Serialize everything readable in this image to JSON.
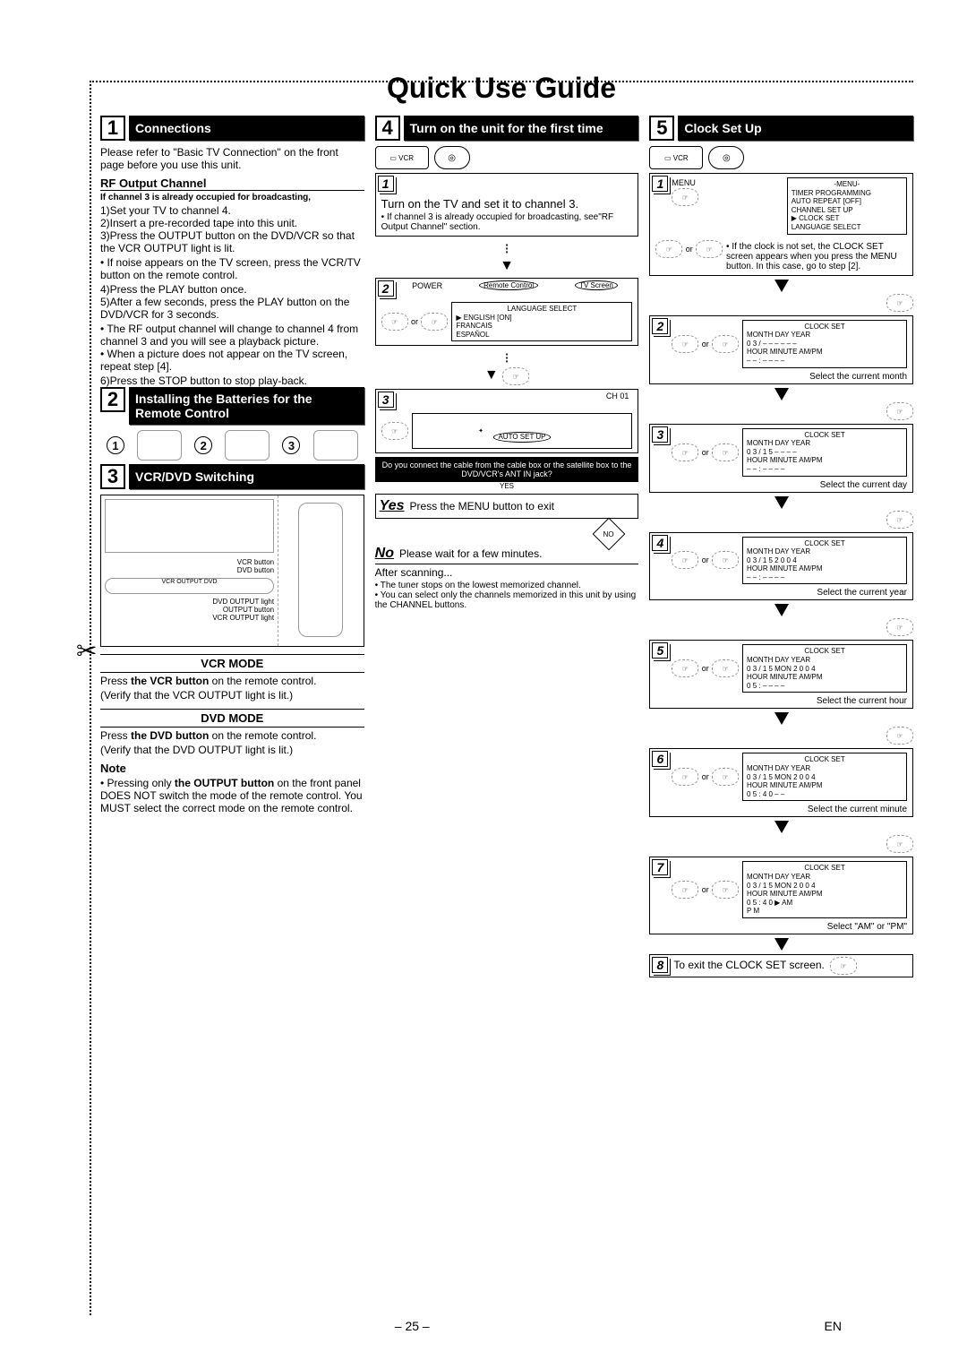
{
  "title": "Quick Use Guide",
  "page_num": "– 25 –",
  "page_lang": "EN",
  "sec1": {
    "num": "1",
    "title": "Connections",
    "intro": "Please refer to \"Basic TV Connection\" on the front page before you use this unit.",
    "sub1": "RF Output Channel",
    "cond": "If channel 3 is already occupied for broadcasting,",
    "s1": "Set your TV to channel 4.",
    "s2": "Insert a pre-recorded tape into this unit.",
    "s3": "Press the OUTPUT button on the DVD/VCR so that the VCR OUTPUT light is lit.",
    "b3": "If noise appears on the TV screen, press the VCR/TV button on the remote control.",
    "s4": "Press the PLAY button once.",
    "s5": "After a few seconds, press the PLAY button on the DVD/VCR for 3 seconds.",
    "b5a": "The RF output channel will change to channel 4 from channel 3 and you will see a playback picture.",
    "b5b": "When a picture does not appear on the TV screen, repeat step [4].",
    "s6": "Press the STOP button to stop play-back."
  },
  "sec2": {
    "num": "2",
    "title": "Installing the Batteries for the Remote Control"
  },
  "sec3": {
    "num": "3",
    "title": "VCR/DVD Switching",
    "l_vcr_btn": "VCR button",
    "l_dvd_btn": "DVD button",
    "l_dvd_out": "DVD OUTPUT light",
    "l_out_btn": "OUTPUT button",
    "l_vcr_out": "VCR OUTPUT light",
    "vcr_mode": "VCR MODE",
    "vcr_txt1": "Press the VCR button on the remote control.",
    "vcr_txt2": "(Verify that the VCR OUTPUT light is lit.)",
    "dvd_mode": "DVD MODE",
    "dvd_txt1": "Press the DVD button on the remote control.",
    "dvd_txt2": "(Verify that the DVD OUTPUT light is lit.)",
    "note": "Note",
    "note_txt": "Pressing only the OUTPUT button on the front panel DOES NOT switch the mode of the remote control. You MUST select the correct mode on the remote control."
  },
  "sec4": {
    "num": "4",
    "title": "Turn on the unit for the first time",
    "s1": "Turn on the TV and set it to channel 3.",
    "s1n": "If channel 3 is already occupied for broadcasting, see\"RF Output Channel\" section.",
    "s2_power": "POWER",
    "s2_rc": "Remote Control",
    "s2_tv": "TV Screen",
    "s2_or": "or",
    "osd2_t": "LANGUAGE SELECT",
    "osd2_l1": "▶ ENGLISH       [ON]",
    "osd2_l2": "   FRANCAIS",
    "osd2_l3": "   ESPAÑOL",
    "s3_ch": "CH 01",
    "s3_auto": "AUTO SET UP",
    "q": "Do you connect the cable from the cable box or the satellite box to the DVD/VCR's ANT IN jack?",
    "yes": "Yes",
    "yes_txt": "Press the MENU button to exit",
    "no_d": "NO",
    "no": "No",
    "no_txt": "Please wait for a few minutes.",
    "after": "After scanning...",
    "b1": "The tuner stops on the lowest memorized channel.",
    "b2": "You can select only the channels memorized in this unit by using the CHANNEL buttons."
  },
  "sec5": {
    "num": "5",
    "title": "Clock Set Up",
    "or": "or",
    "osd1_t": "-MENU-",
    "osd1_l1": "   TIMER PROGRAMMING",
    "osd1_l2": "   AUTO REPEAT  [OFF]",
    "osd1_l3": "   CHANNEL SET UP",
    "osd1_l4": "▶ CLOCK SET",
    "osd1_l5": "   LANGUAGE SELECT",
    "s1n": "If the clock is not set, the CLOCK SET screen appears when you press the MENU button. In this case, go to step [2].",
    "cs": "CLOCK SET",
    "hdr": "MONTH  DAY         YEAR",
    "hdr2": "HOUR  MINUTE    AM/PM",
    "r2_1": "0 3    /  – –              – – – –",
    "r2_2": "– –  :  – –                 – –",
    "c2": "Select the current month",
    "r3_1": "0 3    /  1 5              – – – –",
    "c3": "Select the current day",
    "r4_1": "0 3    /  1 5              2 0 0 4",
    "c4": "Select the current year",
    "r5_1": "0 3    /  1 5  MON  2 0 0 4",
    "r5_2": "0 5  :  – –                 – –",
    "c5": "Select the current hour",
    "r6_2": "0 5  :  4 0                 – –",
    "c6": "Select the current minute",
    "r7_2": "0 5  :  4 0           ▶ AM",
    "r7_3": "                              P M",
    "c7": "Select \"AM\" or \"PM\"",
    "s8": "To exit the CLOCK SET screen."
  }
}
